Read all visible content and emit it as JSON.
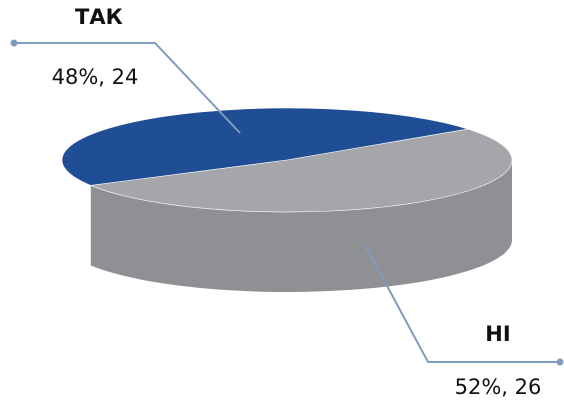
{
  "chart_data": {
    "type": "pie",
    "categories": [
      "ТАК",
      "НІ"
    ],
    "values": [
      24,
      26
    ],
    "value_labels": [
      "48%, 24",
      "52%, 26"
    ],
    "colors": [
      "#1f4e94",
      "#a4a6a9"
    ],
    "side_colors": [
      "#0f3b7a",
      "#8e9093"
    ]
  }
}
